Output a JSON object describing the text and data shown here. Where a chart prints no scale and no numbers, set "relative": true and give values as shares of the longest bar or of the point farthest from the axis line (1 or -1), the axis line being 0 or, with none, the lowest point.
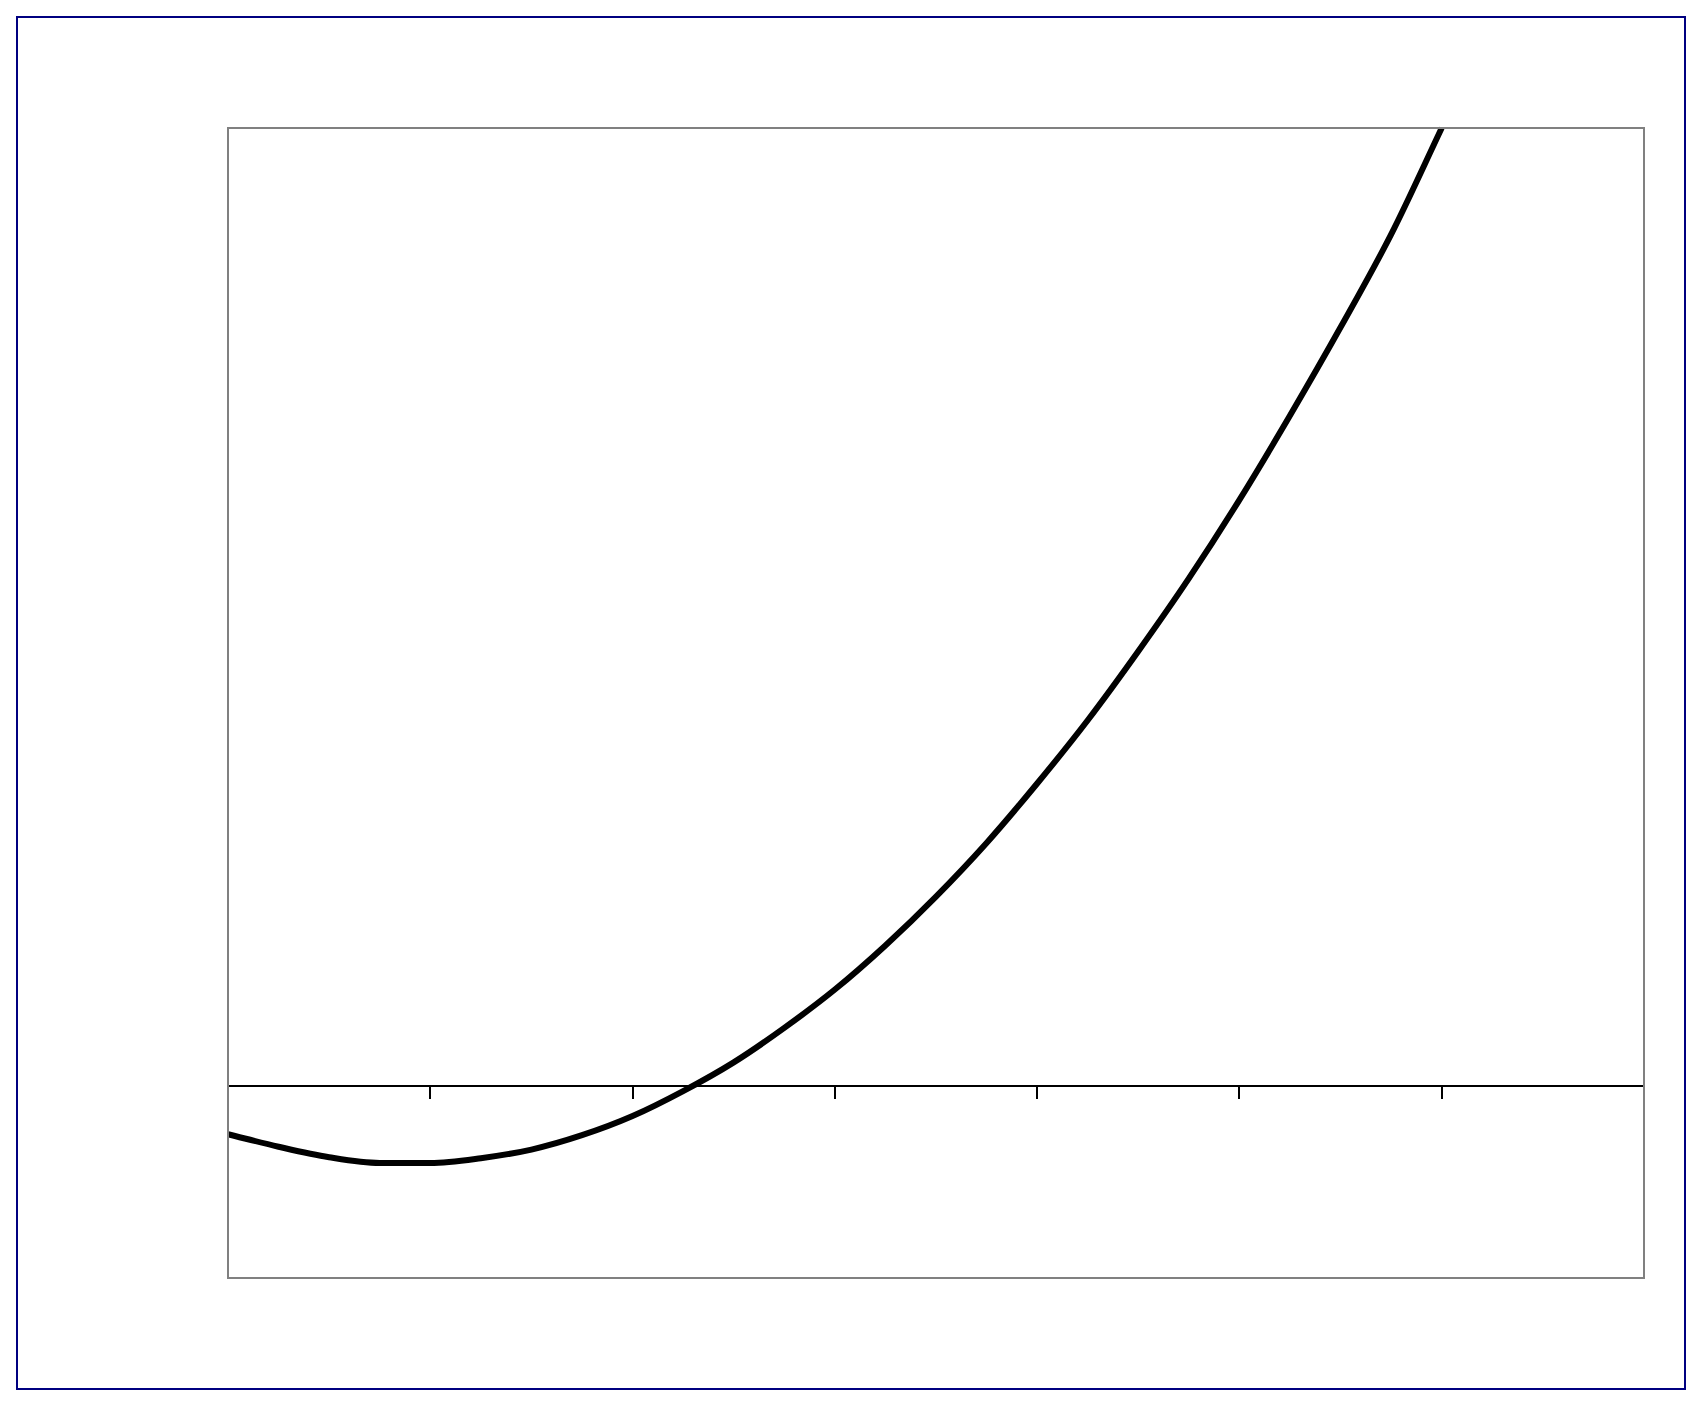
{
  "chart_data": {
    "type": "line",
    "relative": true,
    "categories": [
      null,
      null,
      null,
      null,
      null,
      null,
      null,
      null,
      null,
      null,
      null,
      null,
      null,
      null,
      null,
      null,
      null,
      null,
      null,
      null,
      null,
      null,
      null,
      null,
      null,
      null,
      null,
      null,
      null
    ],
    "series": [
      {
        "color": "#000000",
        "values": [
          -0.05,
          -0.063,
          -0.074,
          -0.08,
          -0.08,
          -0.075,
          -0.066,
          -0.051,
          -0.031,
          -0.005,
          0.025,
          0.061,
          0.101,
          0.147,
          0.198,
          0.254,
          0.316,
          0.382,
          0.454,
          0.53,
          0.612,
          0.7,
          0.792,
          0.889,
          1.0,
          null,
          null,
          null,
          null
        ]
      }
    ]
  }
}
